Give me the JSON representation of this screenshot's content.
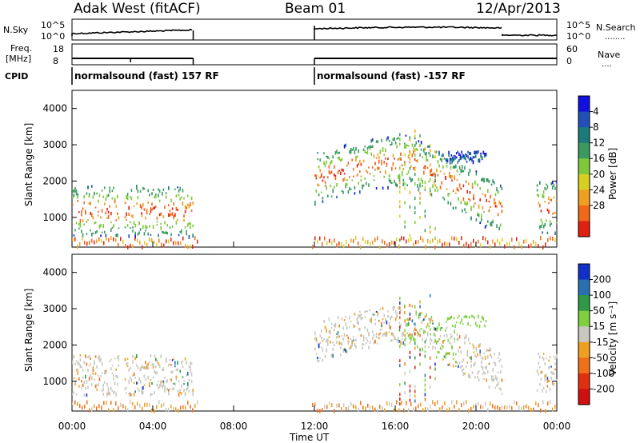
{
  "header": {
    "radar": "Adak West (fitACF)",
    "beam": "Beam 01",
    "date": "12/Apr/2013"
  },
  "labels": {
    "nsky": "N.Sky",
    "nsearch": "N.Search",
    "freq_line1": "Freq.",
    "freq_line2": "[MHz]",
    "nave": "Nave",
    "cpid": "CPID",
    "nsky_ticks": [
      "10^5",
      "10^0"
    ],
    "nsearch_ticks": [
      "10^5",
      "10^0"
    ],
    "freq_ticks": [
      "18",
      "8"
    ],
    "nave_ticks": [
      "60",
      "0"
    ],
    "legend_dots": "........",
    "nave_dots": "...."
  },
  "cpid_segments": [
    {
      "label": "normalsound (fast) 157 RF",
      "start": 0.0,
      "end": 6.0
    },
    {
      "label": "normalsound (fast) -157 RF",
      "start": 12.0,
      "end": 24.0
    }
  ],
  "chart_data": [
    {
      "type": "heatmap",
      "title": "Power",
      "ylabel": "Slant Range [km]",
      "xlabel": "Time UT",
      "x_range_hours": [
        0,
        24
      ],
      "ylim": [
        180,
        4500
      ],
      "y_ticks": [
        1000,
        2000,
        3000,
        4000
      ],
      "x_tick_labels": [
        "00:00",
        "04:00",
        "08:00",
        "12:00",
        "16:00",
        "20:00",
        "00:00"
      ],
      "colorbar": {
        "label": "Power [dB]",
        "ticks": [
          "4",
          "8",
          "12",
          "16",
          "20",
          "24",
          "28"
        ],
        "colors": [
          "#1010e0",
          "#2050b8",
          "#1b7a7a",
          "#3a9a60",
          "#7ec83a",
          "#d8d020",
          "#f0a020",
          "#f06818",
          "#e02010"
        ]
      },
      "data_gaps_hours": [
        [
          2.3,
          2.6
        ],
        [
          6.0,
          12.0
        ],
        [
          21.3,
          23.0
        ]
      ]
    },
    {
      "type": "heatmap",
      "title": "Velocity",
      "ylabel": "Slant Range [km]",
      "xlabel": "Time UT",
      "x_range_hours": [
        0,
        24
      ],
      "ylim": [
        180,
        4500
      ],
      "y_ticks": [
        1000,
        2000,
        3000,
        4000
      ],
      "x_tick_labels": [
        "00:00",
        "04:00",
        "08:00",
        "12:00",
        "16:00",
        "20:00",
        "00:00"
      ],
      "colorbar": {
        "label": "Velocity [m s⁻¹]",
        "ticks": [
          "200",
          "100",
          "50",
          "15",
          "-15",
          "-50",
          "-100",
          "-200"
        ],
        "colors": [
          "#1030c8",
          "#2a70b0",
          "#2e9a48",
          "#80d040",
          "#c8c8c0",
          "#f0a020",
          "#f07018",
          "#e03010",
          "#d01010"
        ]
      },
      "data_gaps_hours": [
        [
          2.3,
          2.6
        ],
        [
          6.0,
          12.0
        ],
        [
          21.3,
          23.0
        ]
      ]
    }
  ],
  "xlabel": "Time UT"
}
